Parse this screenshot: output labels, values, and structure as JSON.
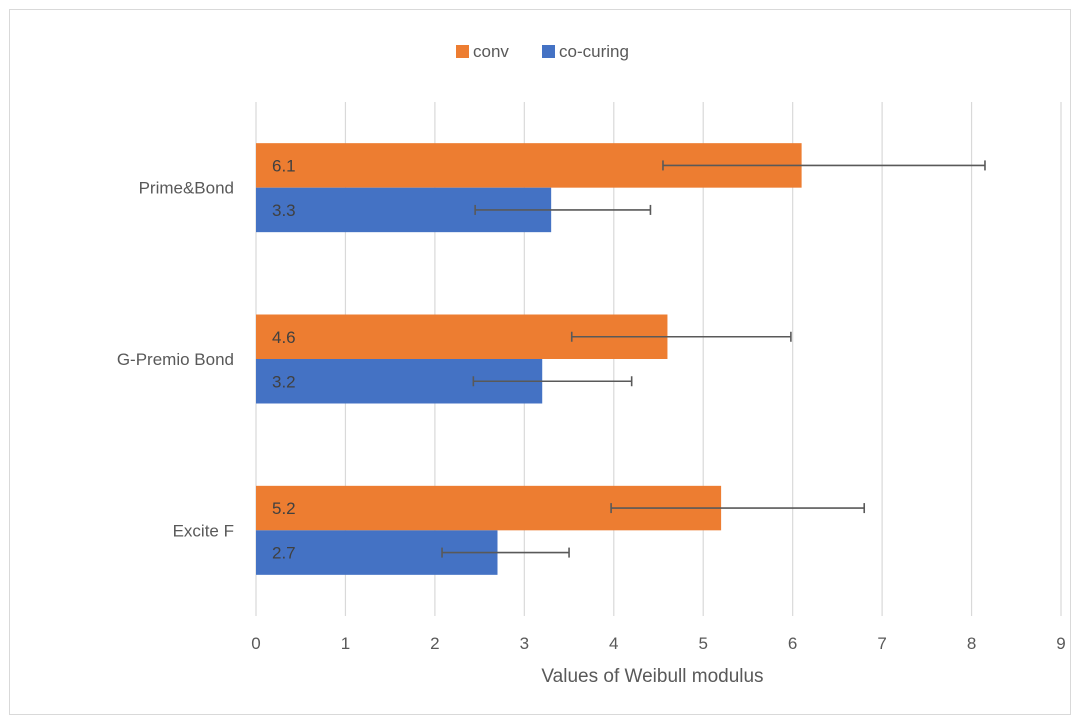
{
  "chart_data": {
    "type": "bar",
    "orientation": "horizontal",
    "categories": [
      "Prime&Bond",
      "G-Premio Bond",
      "Excite F"
    ],
    "series": [
      {
        "name": "conv",
        "color": "#ED7D31",
        "values": [
          6.1,
          4.6,
          5.2
        ],
        "error_low": [
          4.55,
          3.53,
          3.97
        ],
        "error_high": [
          8.15,
          5.98,
          6.8
        ],
        "labels": [
          "6.1",
          "4.6",
          "5.2"
        ]
      },
      {
        "name": "co-curing",
        "color": "#4472C4",
        "values": [
          3.3,
          3.2,
          2.7
        ],
        "error_low": [
          2.45,
          2.43,
          2.08
        ],
        "error_high": [
          4.41,
          4.2,
          3.5
        ],
        "labels": [
          "3.3",
          "3.2",
          "2.7"
        ]
      }
    ],
    "xlim": [
      0,
      9
    ],
    "xticks": [
      "0",
      "1",
      "2",
      "3",
      "4",
      "5",
      "6",
      "7",
      "8",
      "9"
    ],
    "xlabel": "Values of Weibull modulus",
    "ylabel": "",
    "title": "",
    "grid": "vertical",
    "legend_position": "top"
  }
}
